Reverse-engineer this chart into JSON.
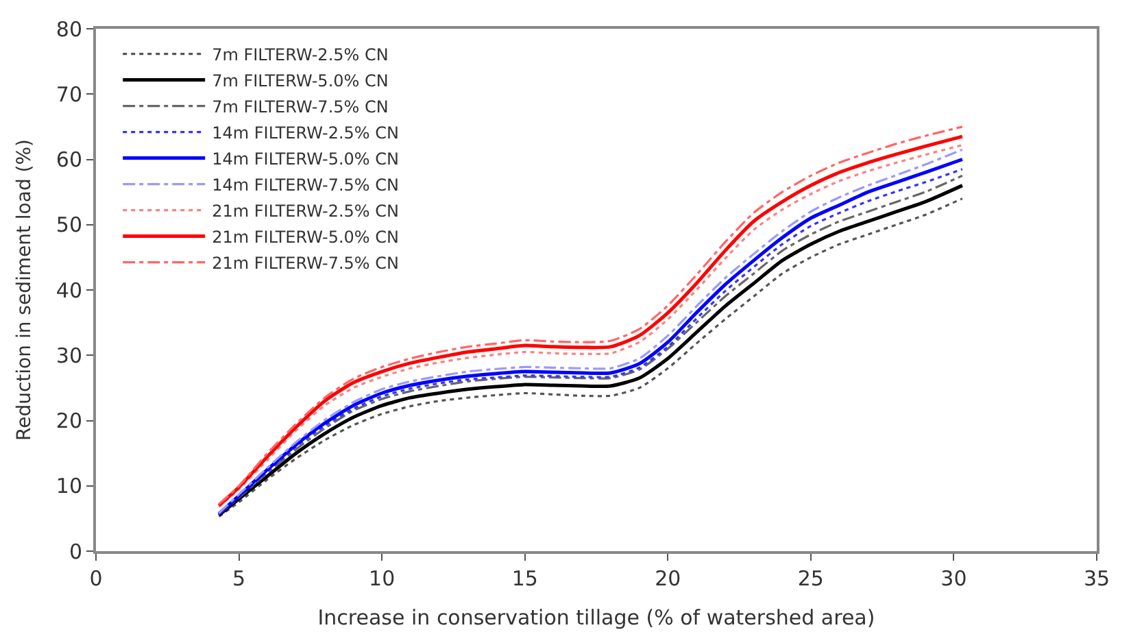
{
  "chart_data": {
    "type": "line",
    "xlabel": "Increase in conservation tillage (% of watershed area)",
    "ylabel": "Reduction in sediment load (%)",
    "x": [
      4.3,
      5,
      6,
      7,
      8,
      9,
      10,
      11,
      12,
      13,
      14,
      15,
      16,
      17,
      18,
      19,
      20,
      21,
      22,
      23,
      24,
      25,
      26,
      27,
      28,
      29,
      30.3
    ],
    "xlim": [
      0,
      35
    ],
    "xticks": [
      0,
      5,
      10,
      15,
      20,
      25,
      30,
      35
    ],
    "ylim": [
      0,
      80
    ],
    "yticks": [
      0,
      10,
      20,
      30,
      40,
      50,
      60,
      70,
      80
    ],
    "legend": "top left",
    "marker": "none",
    "series": [
      {
        "name": "7m FILTERW-2.5% CN",
        "color": "#555555",
        "line_style": "dotted",
        "values": [
          5.3,
          7.5,
          11,
          14.2,
          17,
          19.3,
          21,
          22.2,
          23,
          23.5,
          23.9,
          24.2,
          24,
          23.8,
          23.8,
          25,
          28,
          31.8,
          35.5,
          39,
          42.5,
          45,
          47,
          48.5,
          50,
          51.5,
          54
        ]
      },
      {
        "name": "7m FILTERW-5.0% CN",
        "color": "#000000",
        "line_style": "solid",
        "values": [
          5.5,
          8,
          11.5,
          15,
          18,
          20.5,
          22.3,
          23.5,
          24.2,
          24.8,
          25.2,
          25.5,
          25.4,
          25.3,
          25.3,
          26.5,
          29.5,
          33.5,
          37.5,
          41,
          44.5,
          47,
          49,
          50.5,
          52,
          53.5,
          56
        ]
      },
      {
        "name": "7m FILTERW-7.5% CN",
        "color": "#666666",
        "line_style": "dashdot",
        "values": [
          5.6,
          8.2,
          12,
          15.6,
          18.8,
          21.5,
          23.3,
          24.5,
          25.3,
          26,
          26.4,
          26.7,
          26.6,
          26.5,
          26.5,
          27.8,
          31,
          35,
          39,
          42.5,
          46,
          48.5,
          50.5,
          52,
          53.5,
          55,
          57.5
        ]
      },
      {
        "name": "14m FILTERW-2.5% CN",
        "color": "#3333ff",
        "line_style": "dotted",
        "values": [
          5.6,
          8.3,
          12.2,
          16,
          19.2,
          21.8,
          23.7,
          24.9,
          25.7,
          26.3,
          26.6,
          26.9,
          26.8,
          26.7,
          26.7,
          28.1,
          31.3,
          35.6,
          39.8,
          43.5,
          47,
          49.8,
          51.8,
          53.6,
          55.1,
          56.5,
          58.5
        ]
      },
      {
        "name": "14m FILTERW-5.0% CN",
        "color": "#0000ff",
        "line_style": "solid",
        "values": [
          5.7,
          8.5,
          12.5,
          16.3,
          19.6,
          22.3,
          24.2,
          25.4,
          26.2,
          26.8,
          27.2,
          27.5,
          27.4,
          27.3,
          27.3,
          28.7,
          32,
          36.5,
          40.8,
          44.5,
          48,
          51,
          53,
          55,
          56.5,
          58,
          60
        ]
      },
      {
        "name": "14m FILTERW-7.5% CN",
        "color": "#9999ff",
        "line_style": "dashdot",
        "values": [
          5.8,
          8.7,
          12.8,
          16.7,
          20.1,
          22.8,
          24.8,
          26,
          26.8,
          27.5,
          27.9,
          28.2,
          28.1,
          28,
          28,
          29.5,
          33,
          37.5,
          41.8,
          45.5,
          49,
          52,
          54.2,
          56,
          57.6,
          59.2,
          61.5
        ]
      },
      {
        "name": "21m FILTERW-2.5% CN",
        "color": "#ff8080",
        "line_style": "dotted",
        "values": [
          6.8,
          9.5,
          14,
          18.5,
          22.3,
          25,
          26.7,
          28,
          28.9,
          29.6,
          30.1,
          30.5,
          30.3,
          30.2,
          30.3,
          32,
          35.5,
          40,
          44.8,
          49.2,
          52.3,
          54.7,
          56.7,
          58.2,
          59.5,
          60.7,
          62.2
        ]
      },
      {
        "name": "21m FILTERW-5.0% CN",
        "color": "#ff0000",
        "line_style": "solid",
        "values": [
          7,
          9.8,
          14.5,
          19,
          23,
          25.8,
          27.5,
          28.8,
          29.7,
          30.5,
          31,
          31.5,
          31.3,
          31.2,
          31.3,
          33,
          36.5,
          41,
          46,
          50.5,
          53.5,
          56,
          58,
          59.5,
          60.8,
          62,
          63.5
        ]
      },
      {
        "name": "21m FILTERW-7.5% CN",
        "color": "#ff6666",
        "line_style": "dashdot",
        "values": [
          7.2,
          10,
          15,
          19.5,
          23.5,
          26.4,
          28.2,
          29.5,
          30.5,
          31.3,
          31.8,
          32.3,
          32.1,
          32,
          32.2,
          34,
          37.6,
          42.3,
          47.3,
          51.8,
          55,
          57.5,
          59.5,
          61,
          62.4,
          63.6,
          65
        ]
      }
    ]
  }
}
